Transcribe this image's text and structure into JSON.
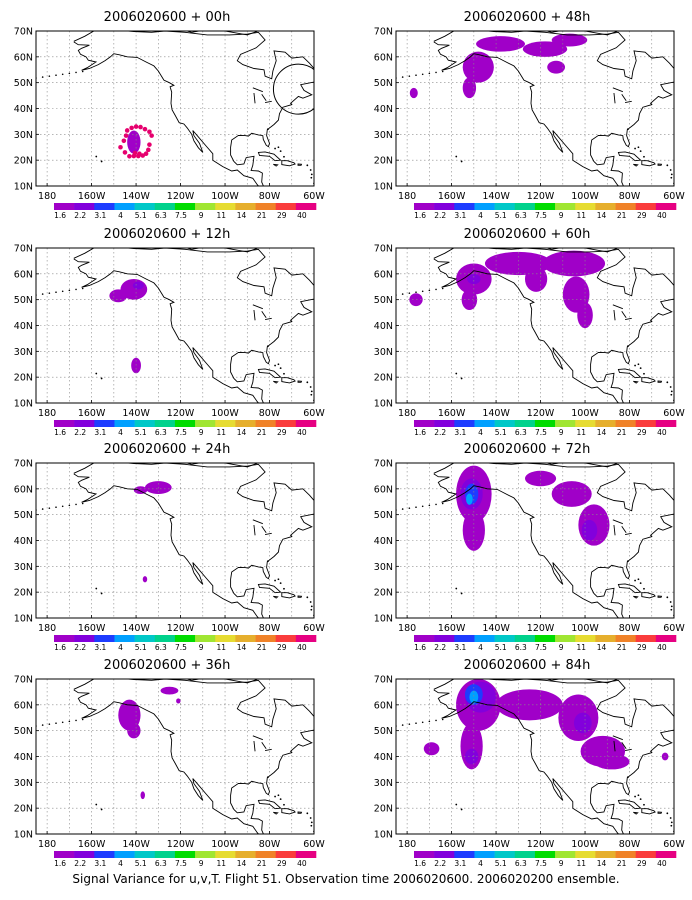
{
  "caption": "Signal Variance for u,v,T. Flight 51. Observation time 2006020600. 2006020200 ensemble.",
  "lat_labels": [
    "70N",
    "60N",
    "50N",
    "40N",
    "30N",
    "20N",
    "10N"
  ],
  "lon_labels": [
    "180",
    "160W",
    "140W",
    "120W",
    "100W",
    "80W",
    "60W"
  ],
  "colorbar": {
    "labels": [
      "1.6",
      "2.2",
      "3.1",
      "4",
      "5.1",
      "6.3",
      "7.5",
      "9",
      "11",
      "14",
      "21",
      "29",
      "40"
    ],
    "colors": [
      "#a000c8",
      "#8200dc",
      "#1e3cff",
      "#00a0ff",
      "#00c8c8",
      "#00d28c",
      "#00dc00",
      "#a0e632",
      "#e6dc32",
      "#e6af2d",
      "#f08228",
      "#fa3c3c",
      "#e60082"
    ]
  },
  "panels": [
    {
      "id": "p00",
      "title": "2006020600 + 00h"
    },
    {
      "id": "p48",
      "title": "2006020600 + 48h"
    },
    {
      "id": "p12",
      "title": "2006020600 + 12h"
    },
    {
      "id": "p60",
      "title": "2006020600 + 60h"
    },
    {
      "id": "p24",
      "title": "2006020600 + 24h"
    },
    {
      "id": "p72",
      "title": "2006020600 + 72h"
    },
    {
      "id": "p36",
      "title": "2006020600 + 36h"
    },
    {
      "id": "p84",
      "title": "2006020600 + 84h"
    }
  ],
  "observation_points": [
    [
      -144,
      31.5
    ],
    [
      -142,
      32.5
    ],
    [
      -140,
      33
    ],
    [
      -138,
      32.8
    ],
    [
      -136,
      32
    ],
    [
      -134,
      31
    ],
    [
      -133,
      29.5
    ],
    [
      -134,
      26
    ],
    [
      -134.5,
      24
    ],
    [
      -135.5,
      22.5
    ],
    [
      -137,
      21.8
    ],
    [
      -139,
      21.6
    ],
    [
      -141,
      21.6
    ],
    [
      -143,
      21.5
    ],
    [
      -145,
      23
    ],
    [
      -147,
      25
    ],
    [
      -145.5,
      27.5
    ],
    [
      -144.5,
      29.5
    ],
    [
      -140.5,
      22.8
    ],
    [
      -138.5,
      22.5
    ]
  ],
  "signal_fields": {
    "p00": [
      {
        "lon": -141,
        "lat": 27,
        "rx": 3,
        "ry": 4.5,
        "level": 0
      }
    ],
    "p12": [
      {
        "lon": -148,
        "lat": 51.5,
        "rx": 4,
        "ry": 2.5,
        "level": 0
      },
      {
        "lon": -141,
        "lat": 54,
        "rx": 6,
        "ry": 4,
        "level": 0
      },
      {
        "lon": -139,
        "lat": 55.5,
        "rx": 2.5,
        "ry": 1.5,
        "level": 1
      },
      {
        "lon": -140,
        "lat": 24.5,
        "rx": 2.2,
        "ry": 3,
        "level": 0
      }
    ],
    "p24": [
      {
        "lon": -130,
        "lat": 60.5,
        "rx": 6,
        "ry": 2.5,
        "level": 0
      },
      {
        "lon": -138,
        "lat": 59.5,
        "rx": 3,
        "ry": 1.5,
        "level": 0
      },
      {
        "lon": -136,
        "lat": 25,
        "rx": 1,
        "ry": 1.2,
        "level": 0
      }
    ],
    "p36": [
      {
        "lon": -143,
        "lat": 56,
        "rx": 5,
        "ry": 6,
        "level": 0
      },
      {
        "lon": -141,
        "lat": 50,
        "rx": 3,
        "ry": 3,
        "level": 0
      },
      {
        "lon": -125,
        "lat": 65.5,
        "rx": 4,
        "ry": 1.5,
        "level": 0
      },
      {
        "lon": -121,
        "lat": 61.5,
        "rx": 1,
        "ry": 1,
        "level": 0
      },
      {
        "lon": -137,
        "lat": 25,
        "rx": 1,
        "ry": 1.5,
        "level": 0
      }
    ],
    "p48": [
      {
        "lon": -148,
        "lat": 56,
        "rx": 7,
        "ry": 6,
        "level": 0
      },
      {
        "lon": -152,
        "lat": 48,
        "rx": 3,
        "ry": 4,
        "level": 0
      },
      {
        "lon": -138,
        "lat": 65,
        "rx": 11,
        "ry": 3,
        "level": 0
      },
      {
        "lon": -118,
        "lat": 63,
        "rx": 10,
        "ry": 3,
        "level": 0
      },
      {
        "lon": -107,
        "lat": 66.5,
        "rx": 8,
        "ry": 2.5,
        "level": 0
      },
      {
        "lon": -113,
        "lat": 56,
        "rx": 4,
        "ry": 2.5,
        "level": 0
      },
      {
        "lon": -177,
        "lat": 46,
        "rx": 1.8,
        "ry": 2,
        "level": 0
      }
    ],
    "p60": [
      {
        "lon": -150,
        "lat": 58,
        "rx": 8,
        "ry": 6,
        "level": 0
      },
      {
        "lon": -152,
        "lat": 50,
        "rx": 3.5,
        "ry": 4,
        "level": 0
      },
      {
        "lon": -130,
        "lat": 64,
        "rx": 15,
        "ry": 4.5,
        "level": 0
      },
      {
        "lon": -105,
        "lat": 64,
        "rx": 14,
        "ry": 5,
        "level": 0
      },
      {
        "lon": -122,
        "lat": 58,
        "rx": 5,
        "ry": 5,
        "level": 0
      },
      {
        "lon": -104,
        "lat": 52,
        "rx": 6,
        "ry": 7,
        "level": 0
      },
      {
        "lon": -100,
        "lat": 44,
        "rx": 3.5,
        "ry": 5,
        "level": 0
      },
      {
        "lon": -176,
        "lat": 50,
        "rx": 3,
        "ry": 2.5,
        "level": 0
      },
      {
        "lon": -150,
        "lat": 58,
        "rx": 3,
        "ry": 2,
        "level": 1
      }
    ],
    "p72": [
      {
        "lon": -150,
        "lat": 58,
        "rx": 8,
        "ry": 11,
        "level": 0
      },
      {
        "lon": -150,
        "lat": 44,
        "rx": 5,
        "ry": 8,
        "level": 0
      },
      {
        "lon": -151,
        "lat": 58,
        "rx": 5,
        "ry": 6,
        "level": 1
      },
      {
        "lon": -151,
        "lat": 58,
        "rx": 3,
        "ry": 4,
        "level": 2
      },
      {
        "lon": -152,
        "lat": 56,
        "rx": 1.5,
        "ry": 2.2,
        "level": 3
      },
      {
        "lon": -120,
        "lat": 64,
        "rx": 7,
        "ry": 3,
        "level": 0
      },
      {
        "lon": -106,
        "lat": 58,
        "rx": 9,
        "ry": 5,
        "level": 0
      },
      {
        "lon": -96,
        "lat": 46,
        "rx": 7,
        "ry": 8,
        "level": 0
      },
      {
        "lon": -98,
        "lat": 44,
        "rx": 3.5,
        "ry": 4,
        "level": 1
      }
    ],
    "p84": [
      {
        "lon": -148,
        "lat": 60,
        "rx": 10,
        "ry": 10,
        "level": 0
      },
      {
        "lon": -151,
        "lat": 44,
        "rx": 5,
        "ry": 9,
        "level": 0
      },
      {
        "lon": -147,
        "lat": 63,
        "rx": 7,
        "ry": 6,
        "level": 1
      },
      {
        "lon": -150,
        "lat": 64,
        "rx": 4,
        "ry": 4,
        "level": 2
      },
      {
        "lon": -150,
        "lat": 63,
        "rx": 2,
        "ry": 2.5,
        "level": 3
      },
      {
        "lon": -151,
        "lat": 40,
        "rx": 3,
        "ry": 3,
        "level": 1
      },
      {
        "lon": -125,
        "lat": 60,
        "rx": 15,
        "ry": 6,
        "level": 0
      },
      {
        "lon": -103,
        "lat": 55,
        "rx": 9,
        "ry": 9,
        "level": 0
      },
      {
        "lon": -101,
        "lat": 53,
        "rx": 4,
        "ry": 4,
        "level": 1
      },
      {
        "lon": -92,
        "lat": 42,
        "rx": 10,
        "ry": 6,
        "level": 0
      },
      {
        "lon": -88,
        "lat": 38,
        "rx": 8,
        "ry": 3,
        "level": 0
      },
      {
        "lon": -169,
        "lat": 43,
        "rx": 3.5,
        "ry": 2.5,
        "level": 0
      },
      {
        "lon": -64,
        "lat": 40,
        "rx": 1.5,
        "ry": 1.5,
        "level": 0
      }
    ]
  }
}
